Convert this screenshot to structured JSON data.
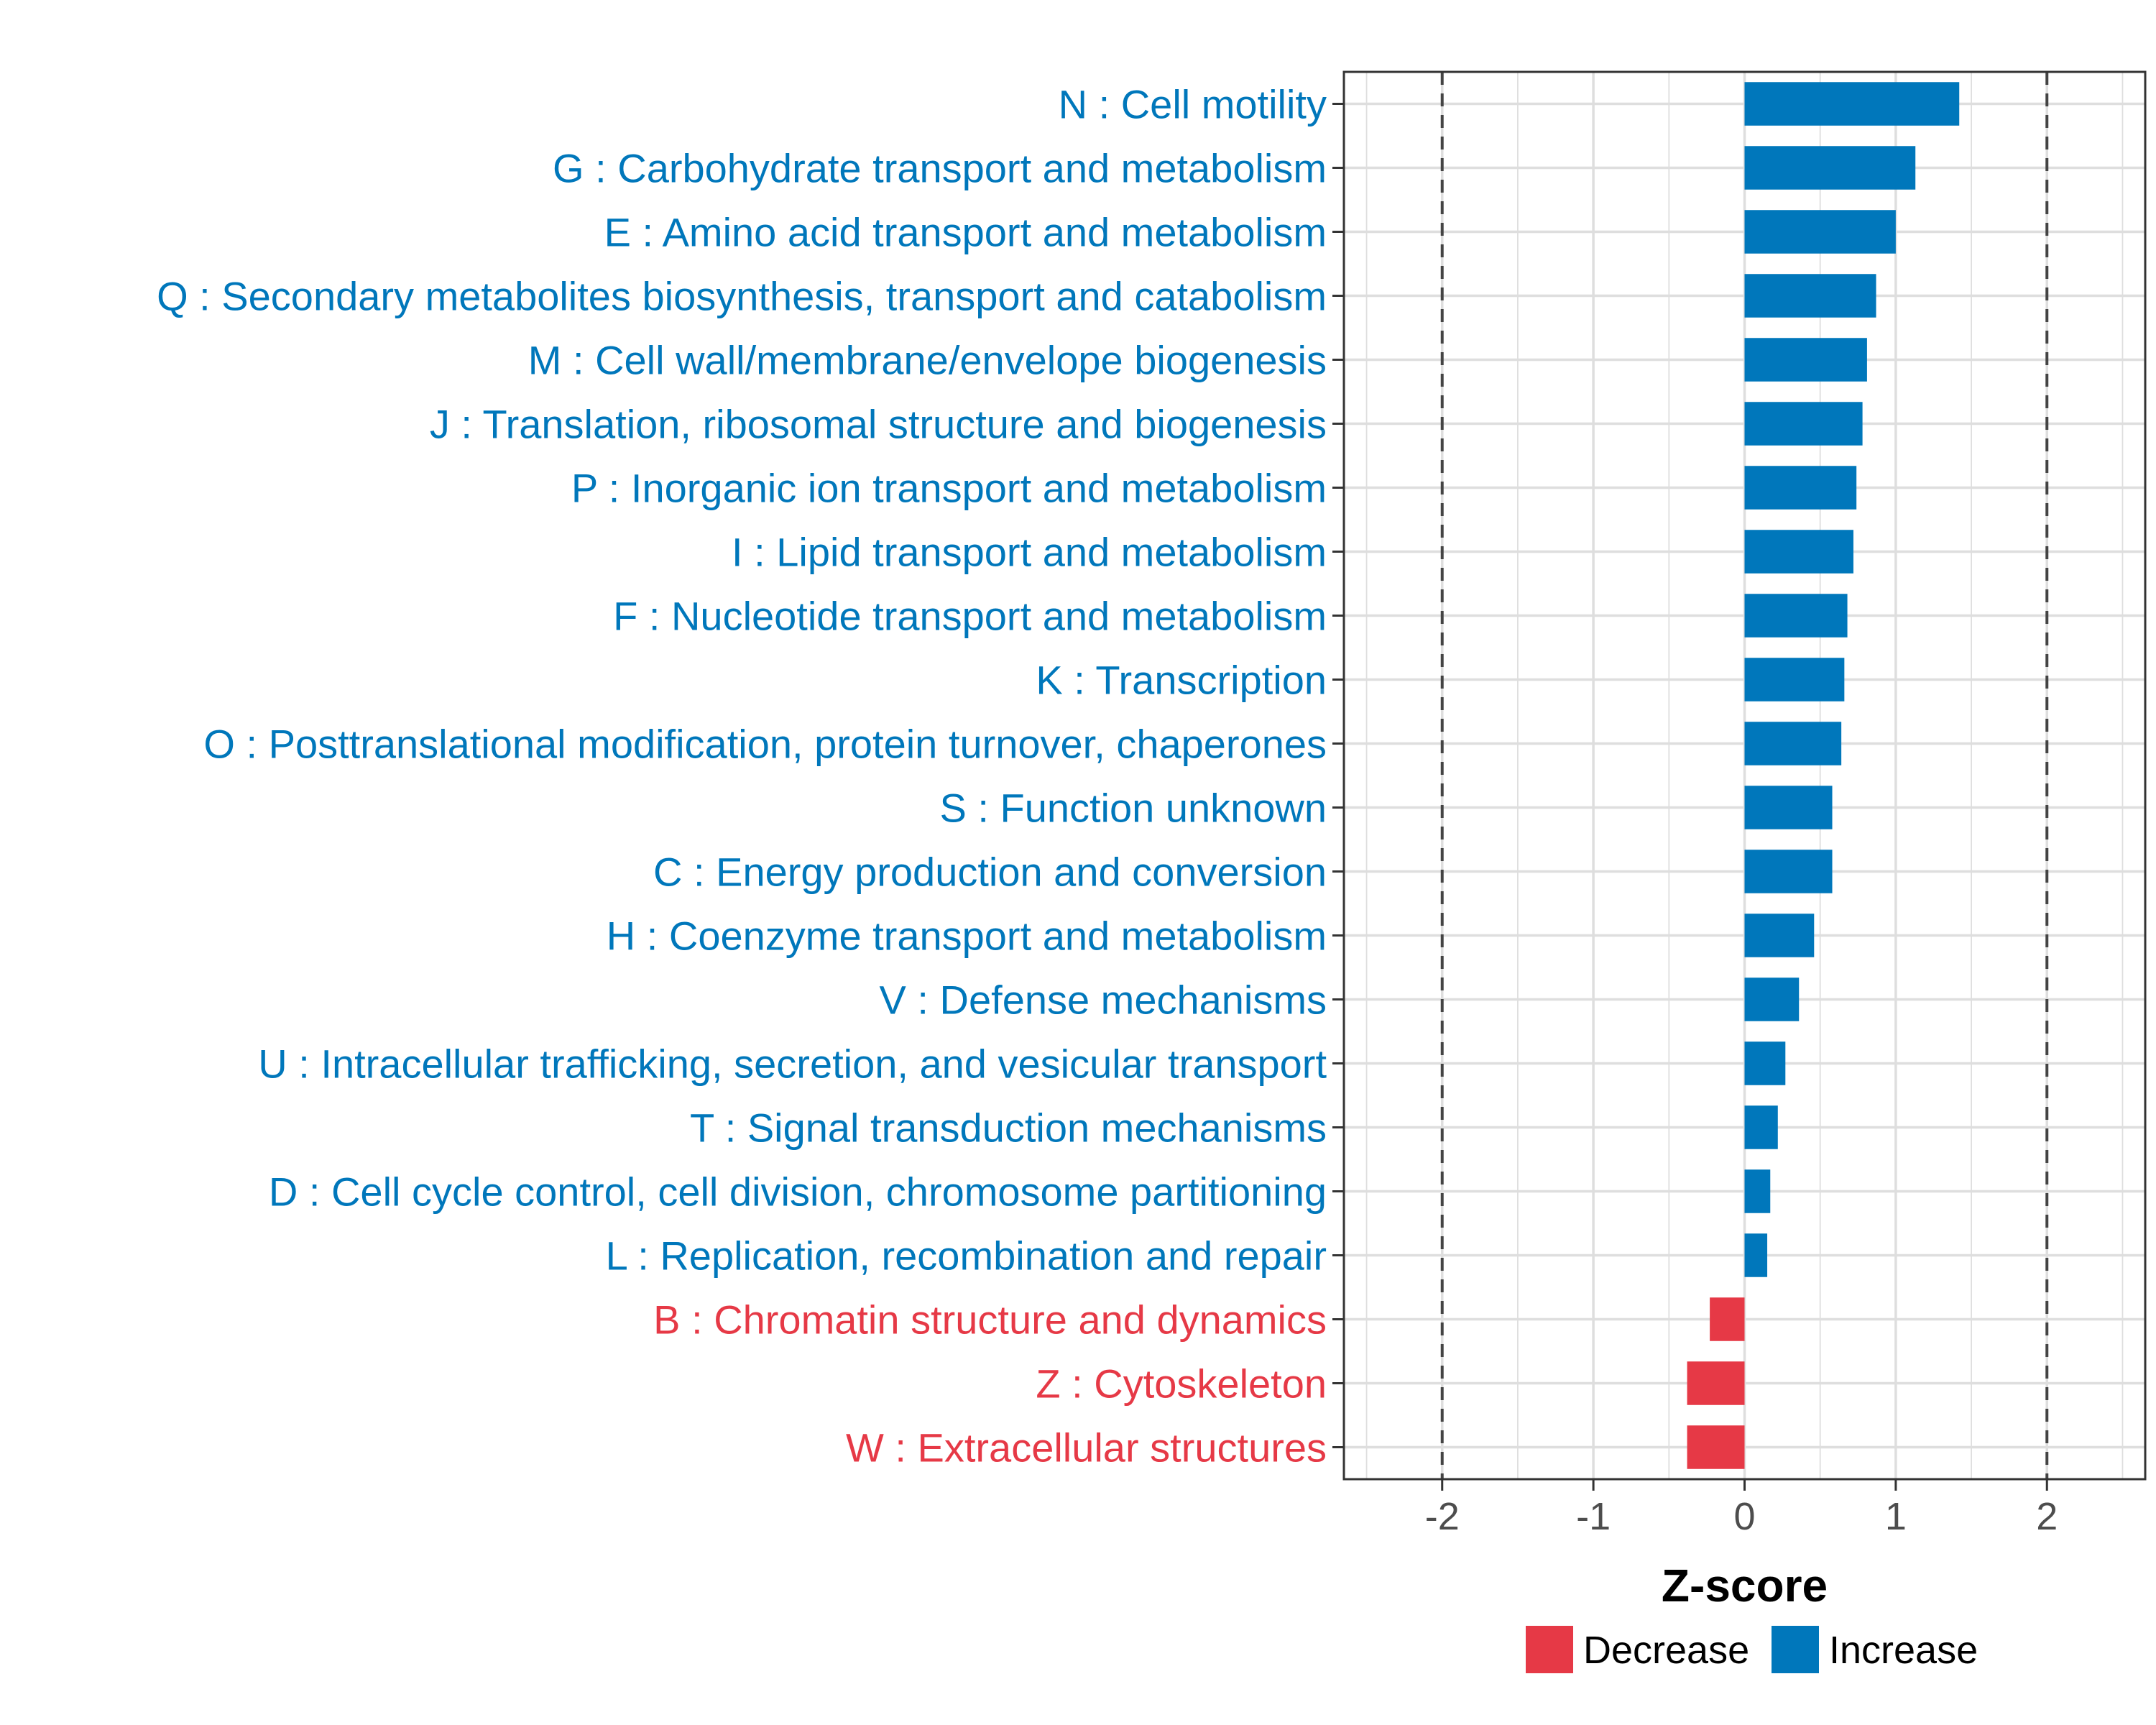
{
  "chart_data": {
    "type": "bar",
    "orientation": "horizontal",
    "title": "",
    "xlabel": "Z-score",
    "ylabel": "",
    "xlim": [
      -2.65,
      2.65
    ],
    "x_ticks": [
      -2,
      -1,
      0,
      1,
      2
    ],
    "tick_labels": [
      "-2",
      "-1",
      "0",
      "1",
      "2"
    ],
    "reference_lines": [
      -2,
      2
    ],
    "grid": true,
    "legend_position": "bottom",
    "colors": {
      "Increase": "#0077bb",
      "Decrease": "#e63946"
    },
    "legend": [
      {
        "key": "Decrease",
        "label": "Decrease"
      },
      {
        "key": "Increase",
        "label": "Increase"
      }
    ],
    "categories": [
      "N : Cell motility",
      "G : Carbohydrate transport and metabolism",
      "E : Amino acid transport and metabolism",
      "Q : Secondary metabolites biosynthesis, transport and catabolism",
      "M : Cell wall/membrane/envelope biogenesis",
      "J : Translation, ribosomal structure and biogenesis",
      "P : Inorganic ion transport and metabolism",
      "I : Lipid transport and metabolism",
      "F : Nucleotide transport and metabolism",
      "K : Transcription",
      "O : Posttranslational modification, protein turnover, chaperones",
      "S : Function unknown",
      "C : Energy production and conversion",
      "H : Coenzyme transport and metabolism",
      "V : Defense mechanisms",
      "U : Intracellular trafficking, secretion, and vesicular transport",
      "T : Signal transduction mechanisms",
      "D : Cell cycle control, cell division, chromosome partitioning",
      "L : Replication, recombination and repair",
      "B : Chromatin structure and dynamics",
      "Z : Cytoskeleton",
      "W : Extracellular structures"
    ],
    "values": [
      1.42,
      1.13,
      1.0,
      0.87,
      0.81,
      0.78,
      0.74,
      0.72,
      0.68,
      0.66,
      0.64,
      0.58,
      0.58,
      0.46,
      0.36,
      0.27,
      0.22,
      0.17,
      0.15,
      -0.23,
      -0.38,
      -0.38
    ],
    "groups": [
      "Increase",
      "Increase",
      "Increase",
      "Increase",
      "Increase",
      "Increase",
      "Increase",
      "Increase",
      "Increase",
      "Increase",
      "Increase",
      "Increase",
      "Increase",
      "Increase",
      "Increase",
      "Increase",
      "Increase",
      "Increase",
      "Increase",
      "Decrease",
      "Decrease",
      "Decrease"
    ]
  }
}
